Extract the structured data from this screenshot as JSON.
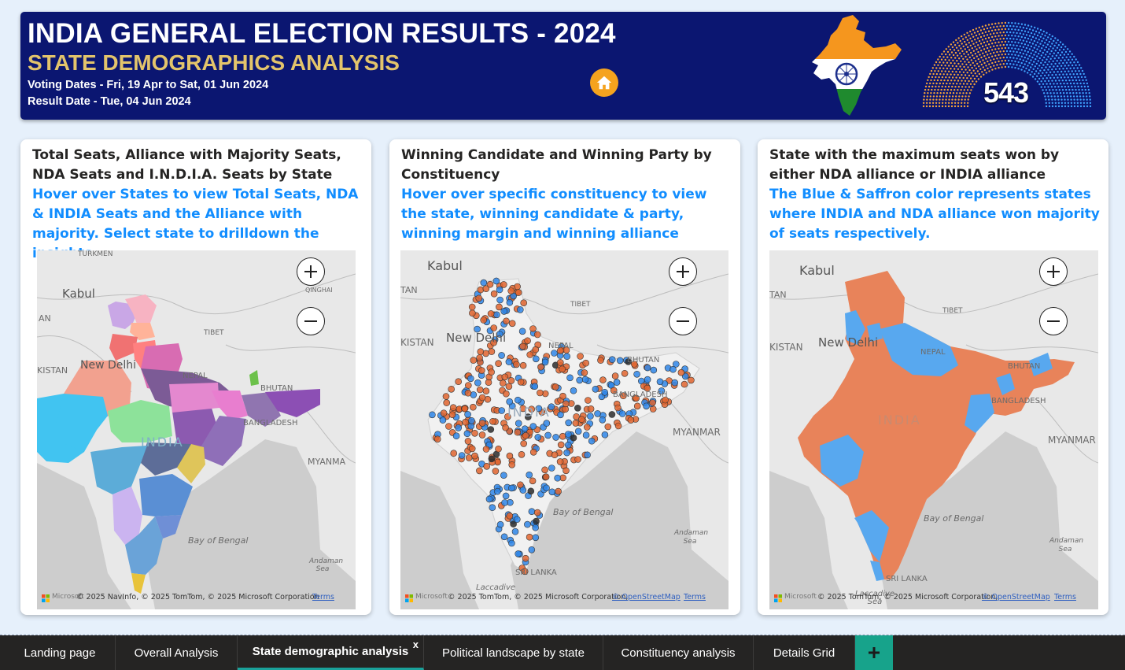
{
  "header": {
    "title": "INDIA GENERAL ELECTION RESULTS - 2024",
    "subtitle": "STATE DEMOGRAPHICS ANALYSIS",
    "voting_dates": "Voting Dates - Fri, 19 Apr to Sat, 01 Jun 2024",
    "result_date": "Result Date - Tue, 04 Jun 2024",
    "total_seats": "543"
  },
  "colors": {
    "banner_bg": "#0b1671",
    "subtitle": "#e3c46b",
    "accent_blue": "#118dff",
    "nda_saffron": "#e8835a",
    "india_blue": "#3b8fe8",
    "others_black": "#333333",
    "home_button": "#f5a31e",
    "add_tab": "#17a38b"
  },
  "cards": [
    {
      "title": "Total Seats, Alliance with Majority Seats, NDA Seats and I.N.D.I.A. Seats by State",
      "description": "Hover over States to view Total Seats, NDA & INDIA Seats and the Alliance with majority. Select state to drilldown the insights.",
      "map": {
        "labels": [
          "TURKMEN",
          "Kabul",
          "AN",
          "QINGHAI",
          "TIBET",
          "KISTAN",
          "New Delhi",
          "NEPAL",
          "BHUTAN",
          "BANGLADESH",
          "INDIA",
          "MYANMA",
          "Bay of Bengal",
          "Andaman Sea"
        ],
        "ms_text": "Microsoft",
        "copyright": "© 2025 NavInfo, © 2025 TomTom, © 2025 Microsoft Corporation",
        "terms": "Terms"
      }
    },
    {
      "title": "Winning Candidate and Winning Party by Constituency",
      "description": "Hover over specific constituency to view the state, winning candidate & party, winning margin and winning alliance",
      "map": {
        "labels": [
          "Kabul",
          "TAN",
          "TIBET",
          "KISTAN",
          "New Delhi",
          "NEPAL",
          "BHUTAN",
          "BANGLADESH",
          "INDIA",
          "MYANMAR",
          "Bay of Bengal",
          "Andaman Sea",
          "SRI LANKA",
          "Laccadive"
        ],
        "ms_text": "Microsoft",
        "copyright_prefix": "© 2025 TomTom, © 2025 Microsoft Corporation,",
        "copyright_link": "© OpenStreetMap",
        "terms": "Terms"
      }
    },
    {
      "title": "State with the maximum seats won by either NDA alliance or INDIA alliance",
      "description": "The Blue & Saffron color represents states where INDIA and NDA alliance won majority of seats respectively.",
      "map": {
        "labels": [
          "Kabul",
          "TAN",
          "TIBET",
          "KISTAN",
          "New Delhi",
          "NEPAL",
          "BHUTAN",
          "BANGLADESH",
          "INDIA",
          "MYANMAR",
          "Bay of Bengal",
          "Andaman Sea",
          "SRI LANKA",
          "Laccadive Sea"
        ],
        "ms_text": "Microsoft",
        "copyright_prefix": "© 2025 TomTom, © 2025 Microsoft Corporation,",
        "copyright_link": "© OpenStreetMap",
        "terms": "Terms"
      }
    }
  ],
  "tabs": [
    {
      "label": "Landing page"
    },
    {
      "label": "Overall Analysis"
    },
    {
      "label": "State demographic analysis",
      "active": true,
      "close": "x"
    },
    {
      "label": "Political landscape by state"
    },
    {
      "label": "Constituency analysis"
    },
    {
      "label": "Details Grid"
    }
  ],
  "icons": {
    "home": "home-icon",
    "zoom_in": "zoom-in-icon",
    "zoom_out": "zoom-out-icon",
    "add_page": "plus-icon",
    "close_tab": "close-icon"
  }
}
